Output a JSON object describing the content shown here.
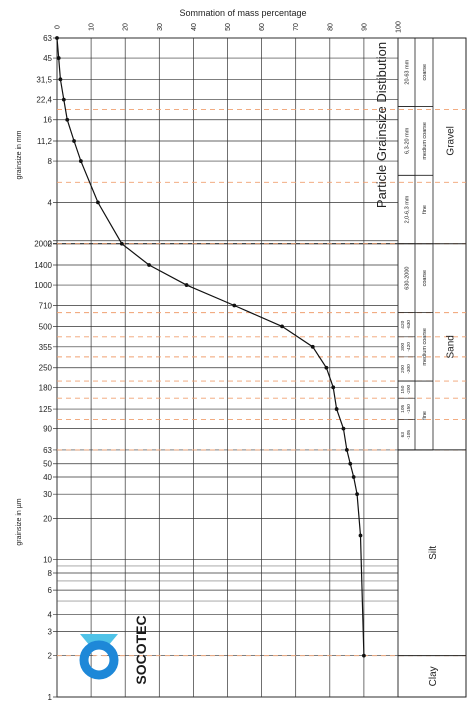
{
  "chart_data": {
    "type": "line",
    "title": "Particle Grainsize Distibution",
    "top_axis": {
      "label": "Sommation of mass percentage",
      "range": [
        0,
        100
      ],
      "ticks": [
        0,
        10,
        20,
        30,
        40,
        50,
        60,
        70,
        80,
        90,
        100
      ]
    },
    "mm_axis": {
      "label": "grainsize in mm",
      "ticks": [
        {
          "label": "63",
          "value": 63
        },
        {
          "label": "45",
          "value": 45
        },
        {
          "label": "31,5",
          "value": 31.5
        },
        {
          "label": "22,4",
          "value": 22.4
        },
        {
          "label": "16",
          "value": 16
        },
        {
          "label": "11,2",
          "value": 11.2
        },
        {
          "label": "8",
          "value": 8
        },
        {
          "label": "4",
          "value": 4
        },
        {
          "label": "2",
          "value": 2
        }
      ]
    },
    "um_axis": {
      "label": "grainsize in µm",
      "ticks": [
        {
          "label": "2000",
          "value": 2000
        },
        {
          "label": "1400",
          "value": 1400
        },
        {
          "label": "1000",
          "value": 1000
        },
        {
          "label": "710",
          "value": 710
        },
        {
          "label": "500",
          "value": 500
        },
        {
          "label": "355",
          "value": 355
        },
        {
          "label": "250",
          "value": 250
        },
        {
          "label": "180",
          "value": 180
        },
        {
          "label": "125",
          "value": 125
        },
        {
          "label": "90",
          "value": 90
        },
        {
          "label": "63",
          "value": 63
        },
        {
          "label": "50",
          "value": 50
        },
        {
          "label": "40",
          "value": 40
        },
        {
          "label": "30",
          "value": 30
        },
        {
          "label": "20",
          "value": 20
        },
        {
          "label": "10",
          "value": 10
        },
        {
          "label": "8",
          "value": 8
        },
        {
          "label": "6",
          "value": 6
        },
        {
          "label": "4",
          "value": 4
        },
        {
          "label": "3",
          "value": 3
        },
        {
          "label": "2",
          "value": 2
        },
        {
          "label": "1",
          "value": 1
        }
      ]
    },
    "series": [
      {
        "points": [
          {
            "size_um": 63000,
            "percent": 0
          },
          {
            "size_um": 45000,
            "percent": 0.5
          },
          {
            "size_um": 31500,
            "percent": 1
          },
          {
            "size_um": 22400,
            "percent": 2
          },
          {
            "size_um": 16000,
            "percent": 3
          },
          {
            "size_um": 11200,
            "percent": 5
          },
          {
            "size_um": 8000,
            "percent": 7
          },
          {
            "size_um": 4000,
            "percent": 12
          },
          {
            "size_um": 2000,
            "percent": 19
          },
          {
            "size_um": 1400,
            "percent": 27
          },
          {
            "size_um": 1000,
            "percent": 38
          },
          {
            "size_um": 710,
            "percent": 52
          },
          {
            "size_um": 500,
            "percent": 66
          },
          {
            "size_um": 355,
            "percent": 75
          },
          {
            "size_um": 250,
            "percent": 79
          },
          {
            "size_um": 180,
            "percent": 81
          },
          {
            "size_um": 125,
            "percent": 82
          },
          {
            "size_um": 90,
            "percent": 84
          },
          {
            "size_um": 63,
            "percent": 85
          },
          {
            "size_um": 50,
            "percent": 86
          },
          {
            "size_um": 40,
            "percent": 87
          },
          {
            "size_um": 30,
            "percent": 88
          },
          {
            "size_um": 15,
            "percent": 89
          },
          {
            "size_um": 2,
            "percent": 90
          }
        ]
      }
    ],
    "dashed_guides_um": [
      19000,
      5600,
      2000,
      630,
      420,
      300,
      200,
      150,
      105,
      63,
      2
    ],
    "classification": {
      "main": [
        {
          "label": "Gravel",
          "from_um": 63000,
          "to_um": 2000
        },
        {
          "label": "Sand",
          "from_um": 2000,
          "to_um": 63
        },
        {
          "label": "Silt",
          "from_um": 63,
          "to_um": 2
        },
        {
          "label": "Clay",
          "from_um": 2,
          "to_um": 1
        }
      ],
      "sub": [
        {
          "label": "coarse",
          "from_um": 63000,
          "to_um": 20000
        },
        {
          "label": "medium coarse",
          "from_um": 20000,
          "to_um": 6300
        },
        {
          "label": "fine",
          "from_um": 6300,
          "to_um": 2000
        },
        {
          "label": "coarse",
          "from_um": 2000,
          "to_um": 630
        },
        {
          "label": "medium coarse",
          "from_um": 630,
          "to_um": 200
        },
        {
          "label": "fine",
          "from_um": 200,
          "to_um": 63
        }
      ],
      "ranges": [
        {
          "label": "20-63 mm",
          "from_um": 63000,
          "to_um": 20000
        },
        {
          "label": "6,3-20 mm",
          "from_um": 20000,
          "to_um": 6300
        },
        {
          "label": "2,0-6,3 mm",
          "from_um": 6300,
          "to_um": 2000
        },
        {
          "label": "630-2000",
          "from_um": 2000,
          "to_um": 630
        },
        {
          "label": "420 -630",
          "from_um": 630,
          "to_um": 420
        },
        {
          "label": "300 -420",
          "from_um": 420,
          "to_um": 300
        },
        {
          "label": "200 -300",
          "from_um": 300,
          "to_um": 200
        },
        {
          "label": "150 -200",
          "from_um": 200,
          "to_um": 150
        },
        {
          "label": "105 -150",
          "from_um": 150,
          "to_um": 105
        },
        {
          "label": "63 -105",
          "from_um": 105,
          "to_um": 63
        }
      ]
    }
  },
  "logo": {
    "text": "SOCOTEC",
    "colors": {
      "blue": "#1e88d8",
      "cyan": "#4fc3e8",
      "dark": "#0d5aa7"
    }
  },
  "colors": {
    "grid": "#222222",
    "dashed": "#f0a070",
    "curve": "#111111"
  }
}
